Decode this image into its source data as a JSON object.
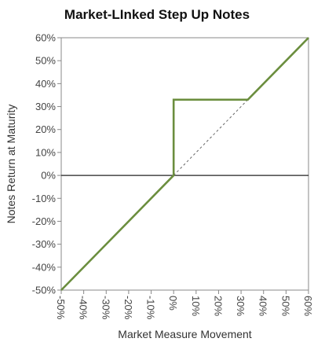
{
  "chart_data": {
    "type": "line",
    "title": "Market-LInked Step Up Notes",
    "xlabel": "Market Measure Movement",
    "ylabel": "Notes Return at Maturity",
    "xlim": [
      -50,
      60
    ],
    "ylim": [
      -50,
      60
    ],
    "x_ticks": [
      -50,
      -40,
      -30,
      -20,
      -10,
      0,
      10,
      20,
      30,
      40,
      50,
      60
    ],
    "y_ticks": [
      60,
      50,
      40,
      30,
      20,
      10,
      0,
      -10,
      -20,
      -30,
      -40,
      -50
    ],
    "x_tick_labels": [
      "-50%",
      "-40%",
      "-30%",
      "-20%",
      "-10%",
      "0%",
      "10%",
      "20%",
      "30%",
      "40%",
      "50%",
      "60%"
    ],
    "y_tick_labels": [
      "60%",
      "50%",
      "40%",
      "30%",
      "20%",
      "10%",
      "0%",
      "-10%",
      "-20%",
      "-30%",
      "-40%",
      "-50%"
    ],
    "series": [
      {
        "style": "solid",
        "color": "#6b8e3e",
        "points": [
          [
            -50,
            -50
          ],
          [
            0,
            0
          ],
          [
            0,
            33
          ],
          [
            33,
            33
          ],
          [
            60,
            60
          ]
        ]
      },
      {
        "style": "dashed",
        "color": "#666666",
        "points": [
          [
            0,
            0
          ],
          [
            33,
            33
          ]
        ]
      }
    ],
    "zero_line": true,
    "grid": false,
    "legend": "none"
  }
}
